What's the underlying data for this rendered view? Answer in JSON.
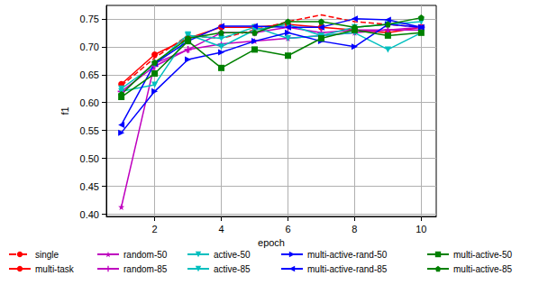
{
  "chart_data": {
    "type": "line",
    "x_label": "epoch",
    "y_label": "f1",
    "xlim": [
      0.55,
      10.45
    ],
    "xticks": [
      2,
      4,
      6,
      8,
      10
    ],
    "ylim": [
      0.396,
      0.774
    ],
    "yticks": [
      {
        "value": 0.4,
        "label": "0.40"
      },
      0.45,
      {
        "value": 0.5,
        "label": "0.50"
      },
      0.55,
      {
        "value": 0.6,
        "label": "0.60"
      },
      0.65,
      {
        "value": 0.7,
        "label": "0.70"
      },
      0.75
    ],
    "grid": true,
    "legend": "bottom",
    "x": [
      1,
      2,
      3,
      4,
      5,
      6,
      7,
      8,
      9,
      10
    ],
    "series": [
      {
        "name": "single",
        "color": "#ff0000",
        "marker": "none",
        "line_style": "dashed",
        "values": [
          0.63,
          0.68,
          0.72,
          0.715,
          0.73,
          0.745,
          0.757,
          0.745,
          0.74,
          0.735
        ]
      },
      {
        "name": "multi-task",
        "color": "#ff0000",
        "marker": "circle",
        "line_style": "solid",
        "values": [
          0.633,
          0.686,
          0.715,
          0.735,
          0.735,
          0.74,
          0.735,
          0.73,
          0.725,
          0.735
        ]
      },
      {
        "name": "random-50",
        "color": "#bf00bf",
        "marker": "star",
        "line_style": "solid",
        "values": [
          0.413,
          0.67,
          0.695,
          0.705,
          0.71,
          0.715,
          0.72,
          0.725,
          0.73,
          0.73
        ]
      },
      {
        "name": "random-85",
        "color": "#bf00bf",
        "marker": "plus",
        "line_style": "solid",
        "values": [
          0.62,
          0.665,
          0.695,
          0.725,
          0.725,
          0.735,
          0.725,
          0.73,
          0.73,
          0.735
        ]
      },
      {
        "name": "active-50",
        "color": "#00bfbf",
        "marker": "triangle_down",
        "line_style": "solid",
        "values": [
          0.62,
          0.632,
          0.72,
          0.715,
          0.735,
          0.715,
          0.72,
          0.725,
          0.695,
          0.725
        ]
      },
      {
        "name": "active-85",
        "color": "#00bfbf",
        "marker": "triangle_down",
        "line_style": "solid",
        "values": [
          0.625,
          0.668,
          0.722,
          0.7,
          0.73,
          0.74,
          0.72,
          0.735,
          0.74,
          0.745
        ]
      },
      {
        "name": "multi-active-rand-50",
        "color": "#0000ff",
        "marker": "triangle_right",
        "line_style": "solid",
        "values": [
          0.546,
          0.62,
          0.677,
          0.69,
          0.71,
          0.725,
          0.71,
          0.7,
          0.74,
          0.735
        ]
      },
      {
        "name": "multi-active-rand-85",
        "color": "#0000ff",
        "marker": "triangle_left",
        "line_style": "solid",
        "values": [
          0.56,
          0.67,
          0.71,
          0.737,
          0.737,
          0.735,
          0.735,
          0.75,
          0.748,
          0.735
        ]
      },
      {
        "name": "multi-active-50",
        "color": "#008000",
        "marker": "square",
        "line_style": "solid",
        "values": [
          0.61,
          0.652,
          0.71,
          0.662,
          0.695,
          0.684,
          0.715,
          0.73,
          0.72,
          0.725
        ]
      },
      {
        "name": "multi-active-85",
        "color": "#008000",
        "marker": "pentagon",
        "line_style": "solid",
        "values": [
          0.615,
          0.672,
          0.715,
          0.725,
          0.725,
          0.745,
          0.745,
          0.735,
          0.74,
          0.752
        ]
      }
    ]
  }
}
